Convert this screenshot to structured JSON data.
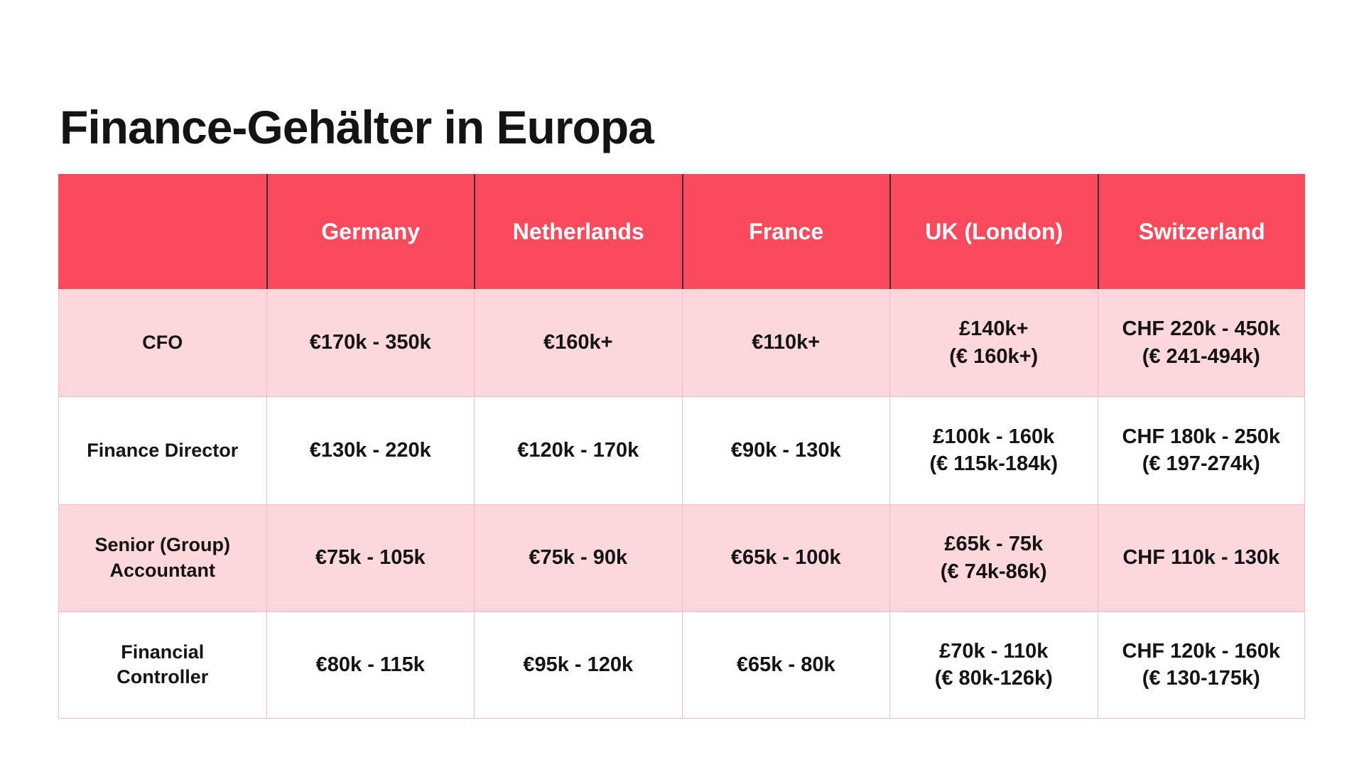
{
  "title": "Finance-Gehälter in Europa",
  "colors": {
    "header_bg": "#fb4a5e",
    "header_text": "#ffffff",
    "header_divider": "#352f38",
    "row_pink": "#fcd8dc",
    "row_white": "#ffffff",
    "grid_line": "#f8bbc2",
    "text_dark": "#141414"
  },
  "table": {
    "columns": [
      "Germany",
      "Netherlands",
      "France",
      "UK (London)",
      "Switzerland"
    ],
    "rows": [
      {
        "label": "CFO",
        "values": [
          "€170k - 350k",
          "€160k+",
          "€110k+",
          "£140k+\n(€ 160k+)",
          "CHF 220k - 450k\n(€ 241-494k)"
        ]
      },
      {
        "label": "Finance Director",
        "values": [
          "€130k - 220k",
          "€120k - 170k",
          "€90k - 130k",
          "£100k - 160k\n(€ 115k-184k)",
          "CHF 180k - 250k\n(€ 197-274k)"
        ]
      },
      {
        "label": "Senior (Group)\nAccountant",
        "values": [
          "€75k - 105k",
          "€75k - 90k",
          "€65k - 100k",
          "£65k - 75k\n(€ 74k-86k)",
          "CHF 110k - 130k"
        ]
      },
      {
        "label": "Financial\nController",
        "values": [
          "€80k - 115k",
          "€95k - 120k",
          "€65k - 80k",
          "£70k - 110k\n(€ 80k-126k)",
          "CHF 120k - 160k\n(€ 130-175k)"
        ]
      }
    ]
  },
  "chart_data": {
    "type": "table",
    "title": "Finance-Gehälter in Europa",
    "columns": [
      "",
      "Germany",
      "Netherlands",
      "France",
      "UK (London)",
      "Switzerland"
    ],
    "rows": [
      [
        "CFO",
        "€170k - 350k",
        "€160k+",
        "€110k+",
        "£140k+ (€ 160k+)",
        "CHF 220k - 450k (€ 241-494k)"
      ],
      [
        "Finance Director",
        "€130k - 220k",
        "€120k - 170k",
        "€90k - 130k",
        "£100k - 160k (€ 115k-184k)",
        "CHF 180k - 250k (€ 197-274k)"
      ],
      [
        "Senior (Group) Accountant",
        "€75k - 105k",
        "€75k - 90k",
        "€65k - 100k",
        "£65k - 75k (€ 74k-86k)",
        "CHF 110k - 130k"
      ],
      [
        "Financial Controller",
        "€80k - 115k",
        "€95k - 120k",
        "€65k - 80k",
        "£70k - 110k (€ 80k-126k)",
        "CHF 120k - 160k (€ 130-175k)"
      ]
    ],
    "layout": {
      "header_fill": "#fb4a5e",
      "body_row_fills": [
        "#fcd8dc",
        "#ffffff",
        "#fcd8dc",
        "#ffffff"
      ],
      "grid": "on"
    }
  }
}
